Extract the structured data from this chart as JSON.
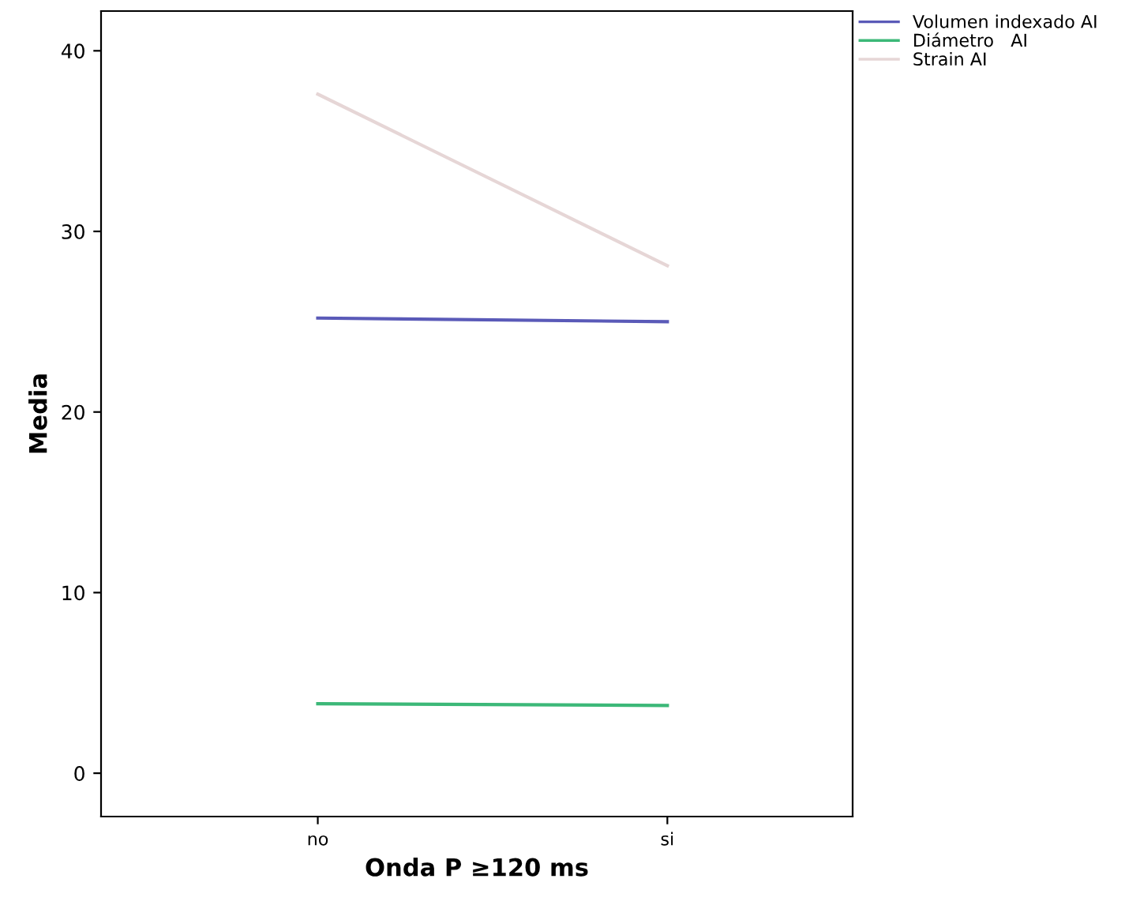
{
  "chart_data": {
    "type": "line",
    "xlabel": "Onda P ≥120 ms",
    "ylabel": "Media",
    "categories": [
      "no",
      "si"
    ],
    "series": [
      {
        "name": "Volumen indexado AI",
        "color": "#5a5ab8",
        "values": [
          25.2,
          25.0
        ]
      },
      {
        "name": "Diámetro   AI",
        "color": "#3cb878",
        "values": [
          3.85,
          3.75
        ]
      },
      {
        "name": "Strain AI",
        "color": "#e6d6d6",
        "values": [
          37.6,
          28.1
        ]
      }
    ],
    "ylim": [
      -2.4,
      42.2
    ],
    "yticks": [
      0,
      10,
      20,
      30,
      40
    ],
    "grid": false,
    "legend": "top right",
    "marker": "none",
    "line_style": "solid"
  }
}
